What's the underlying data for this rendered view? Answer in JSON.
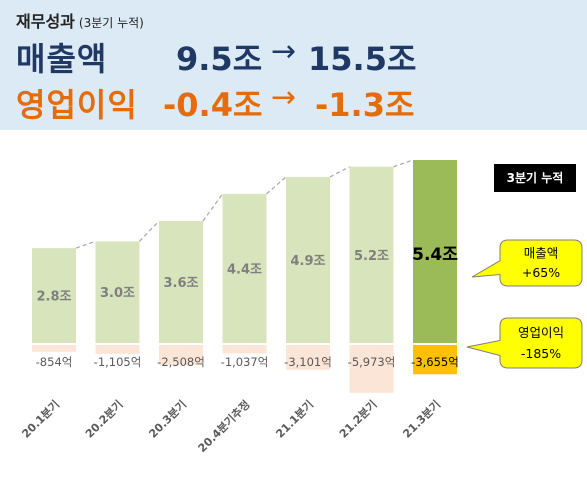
{
  "header": {
    "title": "재무성과",
    "subtitle": "(3분기 누적)",
    "revenue_label": "매출액",
    "revenue_from": "9.5조",
    "revenue_to": "15.5조",
    "op_label": "영업이익",
    "op_from": "-0.4조",
    "op_to": "-1.3조",
    "arrow": "→"
  },
  "badge": "3분기 누적",
  "callouts": {
    "revenue": {
      "title": "매출액",
      "value": "+65%"
    },
    "op": {
      "title": "영업이익",
      "value": "-185%"
    }
  },
  "chart_data": {
    "type": "bar",
    "categories": [
      "20.1분기",
      "20.2분기",
      "20.3분기",
      "20.4분기추정",
      "21.1분기",
      "21.2분기",
      "21.3분기"
    ],
    "series": [
      {
        "name": "매출액",
        "unit": "조",
        "values": [
          2.8,
          3.0,
          3.6,
          4.4,
          4.9,
          5.2,
          5.4
        ],
        "labels": [
          "2.8조",
          "3.0조",
          "3.6조",
          "4.4조",
          "4.9조",
          "5.2조",
          "5.4조"
        ]
      },
      {
        "name": "영업이익",
        "unit": "억",
        "values": [
          -854,
          -1105,
          -2508,
          -1037,
          -3101,
          -5973,
          -3655
        ],
        "labels": [
          "-854억",
          "-1,105억",
          "-2,508억",
          "-1,037억",
          "-3,101억",
          "-5,973억",
          "-3,655억"
        ]
      }
    ],
    "highlight_index": 6,
    "colors": {
      "revenue": "#d8e4bc",
      "revenue_highlight": "#9bbb59",
      "op": "#fbe5d6",
      "op_highlight": "#ffc000",
      "connector": "#a6a6a6",
      "callout_fill": "#ffff00"
    },
    "legend": "none",
    "grid": false
  }
}
